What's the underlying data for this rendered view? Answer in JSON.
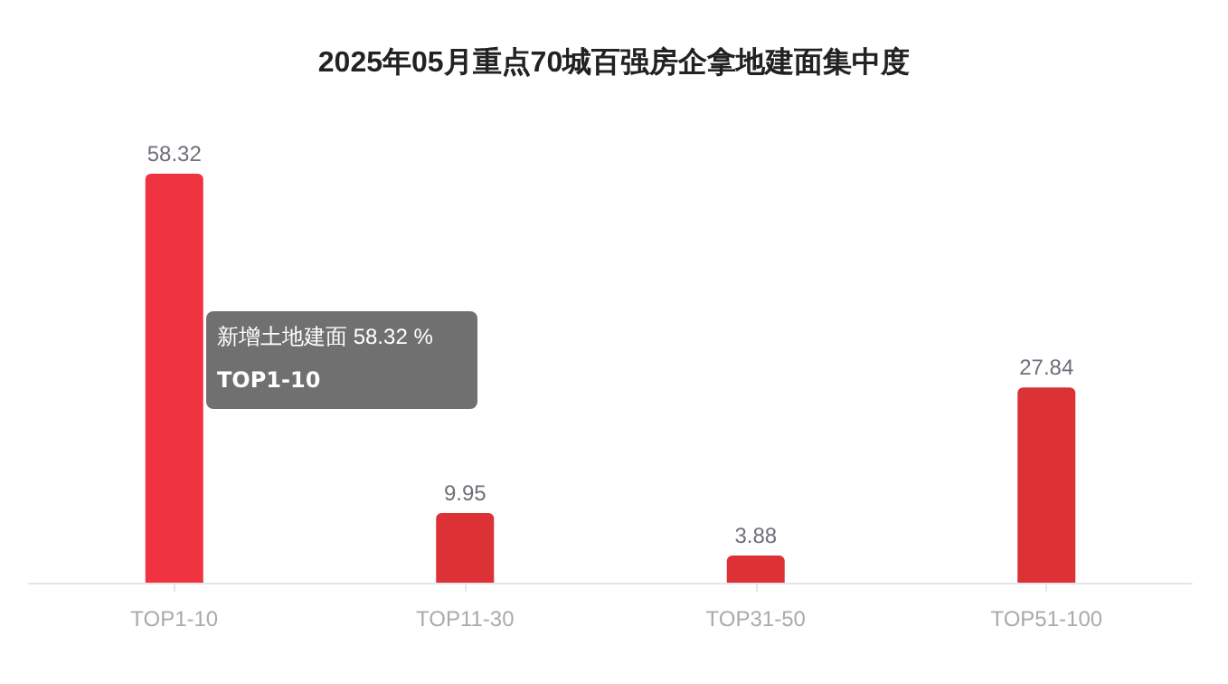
{
  "chart_data": {
    "type": "bar",
    "title": "2025年05月重点70城百强房企拿地建面集中度",
    "categories": [
      "TOP1-10",
      "TOP11-30",
      "TOP31-50",
      "TOP51-100"
    ],
    "values": [
      58.32,
      9.95,
      3.88,
      27.84
    ],
    "colors": [
      "#ef3340",
      "#dc3236",
      "#dc3236",
      "#dc3236"
    ],
    "data_labels": true,
    "annotations": [
      "新增土地建面 58.32 %\nTOP1-10"
    ]
  }
}
